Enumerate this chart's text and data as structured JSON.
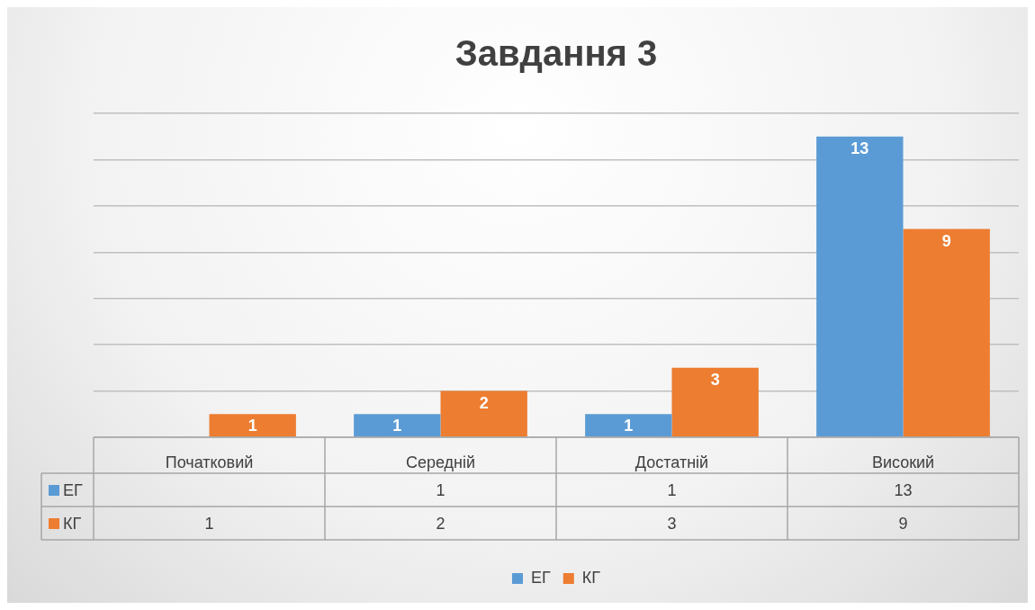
{
  "chart_data": {
    "type": "bar",
    "title": "Завдання 3",
    "categories": [
      "Початковий",
      "Середній",
      "Достатній",
      "Високий"
    ],
    "series": [
      {
        "name": "ЕГ",
        "color": "#5b9bd5",
        "values": [
          null,
          1,
          1,
          13
        ],
        "value_labels": [
          null,
          "1",
          "1",
          "13"
        ]
      },
      {
        "name": "КГ",
        "color": "#ed7d31",
        "values": [
          1,
          2,
          3,
          9
        ],
        "value_labels": [
          "1",
          "2",
          "3",
          "9"
        ]
      }
    ],
    "ylim": [
      0,
      14
    ],
    "yticks": [
      {
        "value": 0,
        "label": null
      },
      {
        "value": 2,
        "label": null
      },
      {
        "value": 4,
        "label": null
      },
      {
        "value": 6,
        "label": null
      },
      {
        "value": 8,
        "label": null
      },
      {
        "value": 10,
        "label": null
      },
      {
        "value": 12,
        "label": null
      },
      {
        "value": 14,
        "label": null
      }
    ],
    "annotations": [
      "1",
      "1",
      "13",
      "1",
      "2",
      "3",
      "9"
    ],
    "grid": "y",
    "tick_labels": "x",
    "data_labels": true,
    "legend": "bottom"
  }
}
